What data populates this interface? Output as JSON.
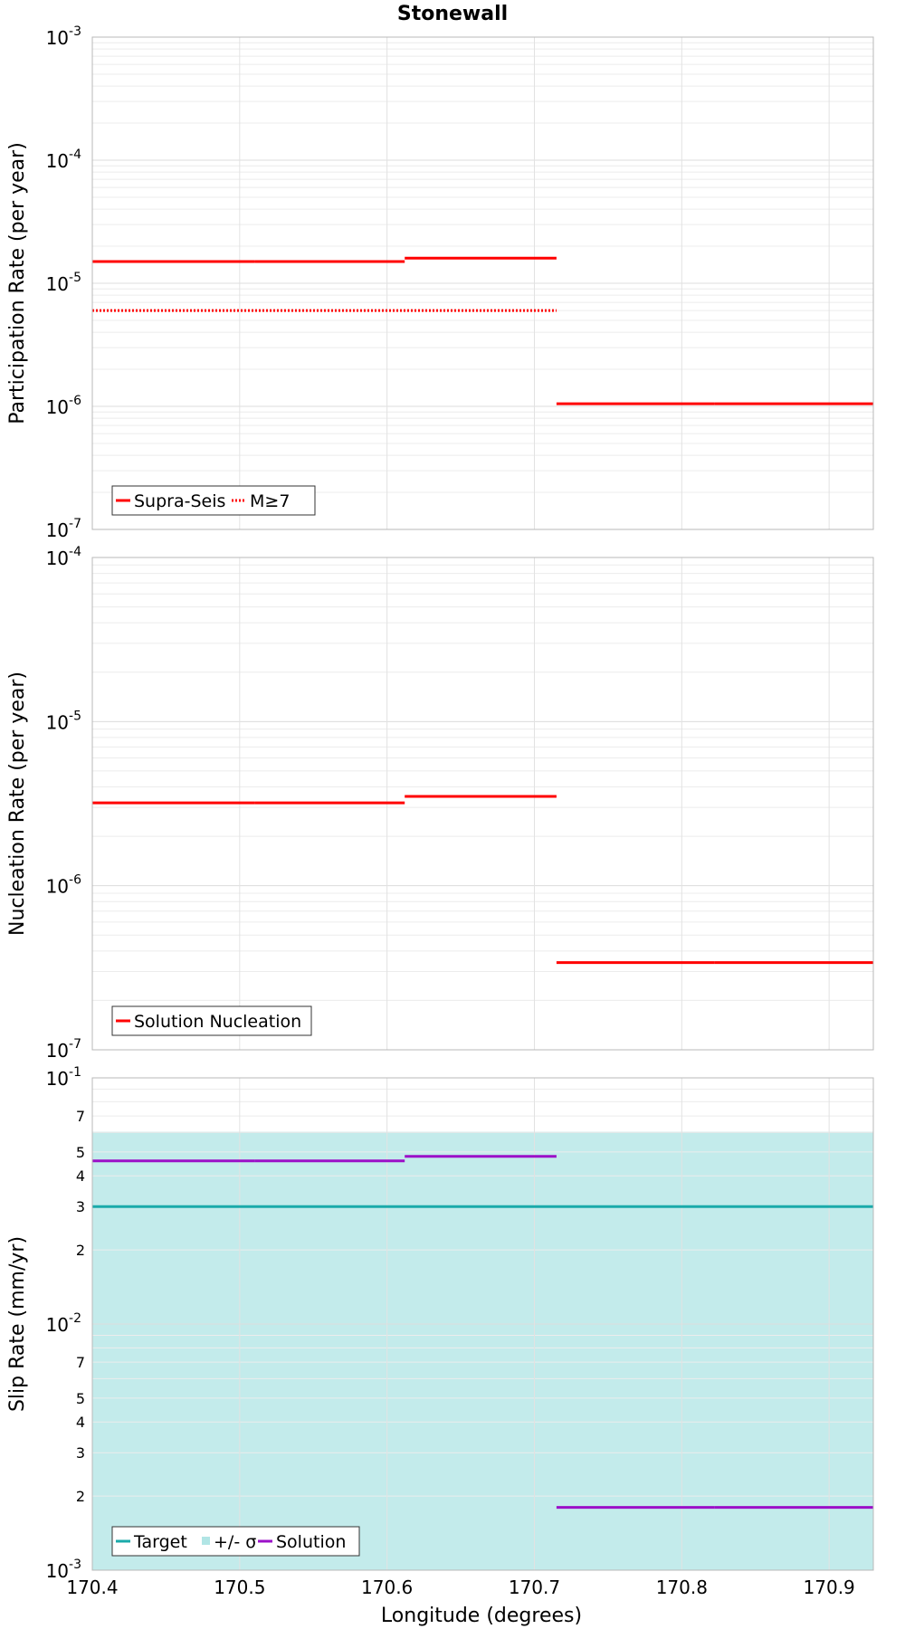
{
  "figure": {
    "title": "Stonewall",
    "xlabel": "Longitude (degrees)"
  },
  "chart_data": [
    {
      "type": "line",
      "ylabel": "Participation Rate (per year)",
      "yscale": "log",
      "xlim": [
        170.4,
        170.93
      ],
      "ylim": [
        1e-07,
        0.001
      ],
      "x_ticks": [
        "170.4",
        "170.5",
        "170.6",
        "170.7",
        "170.8",
        "170.9"
      ],
      "y_ticks": [
        {
          "base": "10",
          "exp": "-7",
          "value": 1e-07
        },
        {
          "base": "10",
          "exp": "-6",
          "value": 1e-06
        },
        {
          "base": "10",
          "exp": "-5",
          "value": 1e-05
        },
        {
          "base": "10",
          "exp": "-4",
          "value": 0.0001
        },
        {
          "base": "10",
          "exp": "-3",
          "value": 0.001
        }
      ],
      "legend": {
        "placement": "bottom-left"
      },
      "grid": true,
      "series": [
        {
          "name": "Supra-Seis",
          "color": "#ff0000",
          "style": "solid",
          "segments": [
            {
              "x": [
                170.4,
                170.51
              ],
              "y": 1.5e-05
            },
            {
              "x": [
                170.51,
                170.612
              ],
              "y": 1.5e-05
            },
            {
              "x": [
                170.612,
                170.715
              ],
              "y": 1.6e-05
            },
            {
              "x": [
                170.715,
                170.822
              ],
              "y": 1.05e-06
            },
            {
              "x": [
                170.822,
                170.93
              ],
              "y": 1.05e-06
            }
          ]
        },
        {
          "name": "M≥7",
          "color": "#ff0000",
          "style": "dotted",
          "segments": [
            {
              "x": [
                170.4,
                170.715
              ],
              "y": 6e-06
            }
          ]
        }
      ]
    },
    {
      "type": "line",
      "ylabel": "Nucleation Rate (per year)",
      "yscale": "log",
      "xlim": [
        170.4,
        170.93
      ],
      "ylim": [
        1e-07,
        0.0001
      ],
      "x_ticks": [
        "170.4",
        "170.5",
        "170.6",
        "170.7",
        "170.8",
        "170.9"
      ],
      "y_ticks": [
        {
          "base": "10",
          "exp": "-7",
          "value": 1e-07
        },
        {
          "base": "10",
          "exp": "-6",
          "value": 1e-06
        },
        {
          "base": "10",
          "exp": "-5",
          "value": 1e-05
        },
        {
          "base": "10",
          "exp": "-4",
          "value": 0.0001
        }
      ],
      "legend": {
        "placement": "bottom-left"
      },
      "grid": true,
      "series": [
        {
          "name": "Solution Nucleation",
          "color": "#ff0000",
          "style": "solid",
          "segments": [
            {
              "x": [
                170.4,
                170.51
              ],
              "y": 3.2e-06
            },
            {
              "x": [
                170.51,
                170.612
              ],
              "y": 3.2e-06
            },
            {
              "x": [
                170.612,
                170.715
              ],
              "y": 3.5e-06
            },
            {
              "x": [
                170.715,
                170.822
              ],
              "y": 3.4e-07
            },
            {
              "x": [
                170.822,
                170.93
              ],
              "y": 3.4e-07
            }
          ]
        }
      ]
    },
    {
      "type": "line",
      "ylabel": "Slip Rate (mm/yr)",
      "yscale": "log",
      "xlim": [
        170.4,
        170.93
      ],
      "ylim": [
        0.001,
        0.1
      ],
      "x_ticks": [
        "170.4",
        "170.5",
        "170.6",
        "170.7",
        "170.8",
        "170.9"
      ],
      "y_ticks": [
        {
          "base": "10",
          "exp": "-3",
          "value": 0.001
        },
        {
          "base": "10",
          "exp": "-2",
          "value": 0.01
        },
        {
          "base": "10",
          "exp": "-1",
          "value": 0.1
        }
      ],
      "y_minor_labels": [
        {
          "label": "2",
          "value": 0.002
        },
        {
          "label": "3",
          "value": 0.003
        },
        {
          "label": "4",
          "value": 0.004
        },
        {
          "label": "5",
          "value": 0.005
        },
        {
          "label": "7",
          "value": 0.007
        },
        {
          "label": "2",
          "value": 0.02
        },
        {
          "label": "3",
          "value": 0.03
        },
        {
          "label": "4",
          "value": 0.04
        },
        {
          "label": "5",
          "value": 0.05
        },
        {
          "label": "7",
          "value": 0.07
        }
      ],
      "legend": {
        "placement": "bottom-left"
      },
      "grid": true,
      "band": {
        "name": "+/- σ",
        "color": "#9edfdf",
        "y_low": 0.001,
        "y_high": 0.06
      },
      "series": [
        {
          "name": "Target",
          "color": "#1aaaaa",
          "style": "solid",
          "segments": [
            {
              "x": [
                170.4,
                170.93
              ],
              "y": 0.03
            }
          ]
        },
        {
          "name": "Solution",
          "color": "#9b10c8",
          "style": "solid",
          "segments": [
            {
              "x": [
                170.4,
                170.51
              ],
              "y": 0.046
            },
            {
              "x": [
                170.51,
                170.612
              ],
              "y": 0.046
            },
            {
              "x": [
                170.612,
                170.715
              ],
              "y": 0.048
            },
            {
              "x": [
                170.715,
                170.822
              ],
              "y": 0.0018
            },
            {
              "x": [
                170.822,
                170.93
              ],
              "y": 0.0018
            }
          ]
        }
      ]
    }
  ]
}
